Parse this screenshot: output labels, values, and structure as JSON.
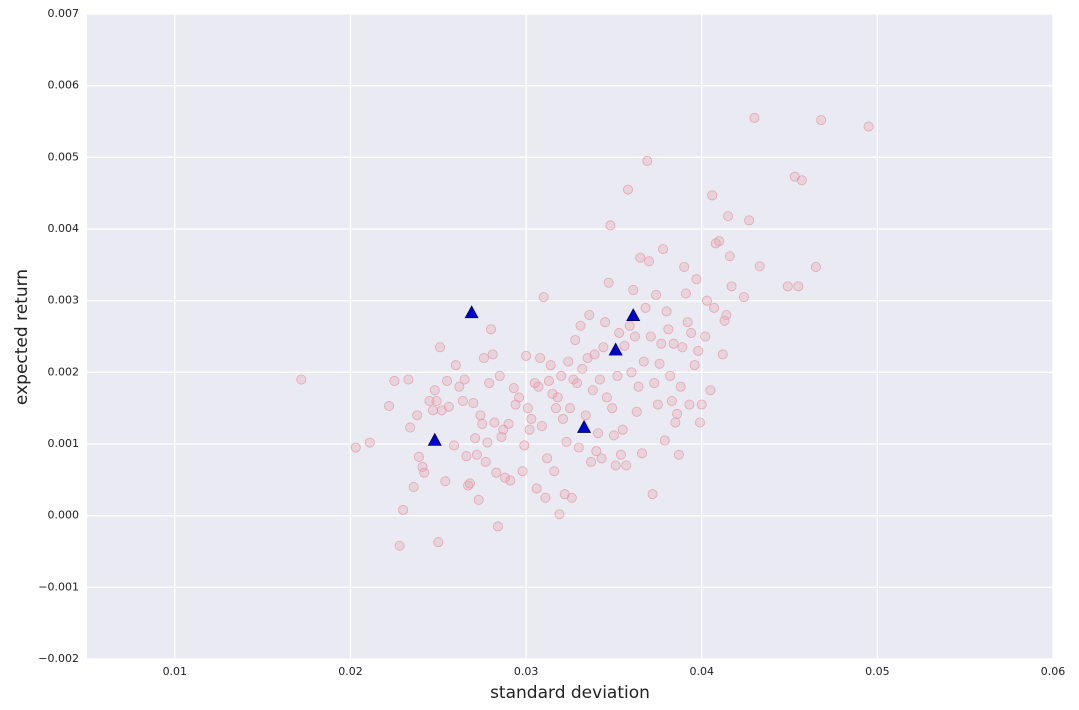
{
  "chart_data": {
    "type": "scatter",
    "xlabel": "standard deviation",
    "ylabel": "expected return",
    "xlim": [
      0.005,
      0.06
    ],
    "ylim": [
      -0.002,
      0.007
    ],
    "xticks": [
      0.01,
      0.02,
      0.03,
      0.04,
      0.05,
      0.06
    ],
    "yticks": [
      {
        "value": -0.002,
        "label": "−0.002"
      },
      {
        "value": -0.001,
        "label": "−0.001"
      },
      {
        "value": 0,
        "label": "0.000"
      },
      0.001,
      0.002,
      0.003,
      0.004,
      0.005,
      0.006,
      0.007
    ],
    "grid": true,
    "series": [
      {
        "color": "#e39aa6",
        "marker": "circle",
        "x": [
          0.0172,
          0.0203,
          0.0211,
          0.0222,
          0.0225,
          0.0228,
          0.023,
          0.0233,
          0.0234,
          0.0236,
          0.0238,
          0.0239,
          0.0241,
          0.0242,
          0.0245,
          0.0247,
          0.0248,
          0.0249,
          0.025,
          0.0251,
          0.0252,
          0.0254,
          0.0255,
          0.0256,
          0.0259,
          0.026,
          0.0262,
          0.0264,
          0.0265,
          0.0266,
          0.0267,
          0.0268,
          0.027,
          0.0271,
          0.0272,
          0.0273,
          0.0274,
          0.0275,
          0.0276,
          0.0277,
          0.0278,
          0.0279,
          0.028,
          0.0281,
          0.0282,
          0.0283,
          0.0284,
          0.0285,
          0.0286,
          0.0287,
          0.0288,
          0.029,
          0.0291,
          0.0293,
          0.0294,
          0.0296,
          0.0298,
          0.0299,
          0.03,
          0.0301,
          0.0302,
          0.0303,
          0.0305,
          0.0306,
          0.0307,
          0.0308,
          0.0309,
          0.031,
          0.0311,
          0.0312,
          0.0313,
          0.0314,
          0.0315,
          0.0316,
          0.0317,
          0.0318,
          0.0319,
          0.032,
          0.0321,
          0.0322,
          0.0323,
          0.0324,
          0.0325,
          0.0326,
          0.0327,
          0.0328,
          0.0329,
          0.033,
          0.0331,
          0.0332,
          0.0334,
          0.0335,
          0.0336,
          0.0337,
          0.0338,
          0.0339,
          0.034,
          0.0341,
          0.0342,
          0.0343,
          0.0344,
          0.0345,
          0.0346,
          0.0347,
          0.0348,
          0.0349,
          0.035,
          0.0351,
          0.0352,
          0.0353,
          0.0354,
          0.0355,
          0.0356,
          0.0357,
          0.0358,
          0.0359,
          0.036,
          0.0361,
          0.0362,
          0.0363,
          0.0364,
          0.0365,
          0.0366,
          0.0367,
          0.0368,
          0.0369,
          0.037,
          0.0371,
          0.0372,
          0.0373,
          0.0374,
          0.0375,
          0.0376,
          0.0377,
          0.0378,
          0.0379,
          0.038,
          0.0381,
          0.0382,
          0.0383,
          0.0384,
          0.0385,
          0.0386,
          0.0387,
          0.0388,
          0.0389,
          0.039,
          0.0391,
          0.0392,
          0.0393,
          0.0394,
          0.0396,
          0.0397,
          0.0398,
          0.0399,
          0.04,
          0.0402,
          0.0403,
          0.0405,
          0.0406,
          0.0407,
          0.0408,
          0.041,
          0.0412,
          0.0413,
          0.0414,
          0.0415,
          0.0416,
          0.0417,
          0.0424,
          0.0427,
          0.043,
          0.0433,
          0.0449,
          0.0453,
          0.0455,
          0.0457,
          0.0465,
          0.0468,
          0.0495
        ],
        "y": [
          0.0019,
          0.00095,
          0.00102,
          0.00153,
          0.00188,
          -0.00042,
          8e-05,
          0.0019,
          0.00123,
          0.0004,
          0.0014,
          0.00082,
          0.00068,
          0.0006,
          0.0016,
          0.00147,
          0.00175,
          0.0016,
          -0.00037,
          0.00235,
          0.00147,
          0.00048,
          0.00188,
          0.00152,
          0.00098,
          0.0021,
          0.0018,
          0.0016,
          0.0019,
          0.00083,
          0.00042,
          0.00045,
          0.00157,
          0.00108,
          0.00085,
          0.00022,
          0.0014,
          0.00128,
          0.0022,
          0.00075,
          0.00102,
          0.00185,
          0.0026,
          0.00225,
          0.0013,
          0.0006,
          -0.00015,
          0.00195,
          0.0011,
          0.0012,
          0.00053,
          0.00128,
          0.00049,
          0.00178,
          0.00155,
          0.00165,
          0.00062,
          0.00098,
          0.00223,
          0.0015,
          0.0012,
          0.00135,
          0.00185,
          0.00038,
          0.0018,
          0.0022,
          0.00125,
          0.00305,
          0.00025,
          0.0008,
          0.00188,
          0.0021,
          0.0017,
          0.00062,
          0.0015,
          0.00165,
          2e-05,
          0.00195,
          0.00135,
          0.0003,
          0.00103,
          0.00215,
          0.0015,
          0.00025,
          0.0019,
          0.00245,
          0.00185,
          0.00095,
          0.00265,
          0.00205,
          0.0014,
          0.0022,
          0.0028,
          0.00075,
          0.00175,
          0.00225,
          0.0009,
          0.00115,
          0.0019,
          0.0008,
          0.00235,
          0.0027,
          0.00165,
          0.00325,
          0.00405,
          0.0015,
          0.00112,
          0.0007,
          0.00195,
          0.00255,
          0.00085,
          0.0012,
          0.00237,
          0.0007,
          0.00455,
          0.00265,
          0.002,
          0.00315,
          0.0025,
          0.00145,
          0.0018,
          0.0036,
          0.00087,
          0.00215,
          0.0029,
          0.00495,
          0.00355,
          0.0025,
          0.0003,
          0.00185,
          0.00308,
          0.00155,
          0.00212,
          0.0024,
          0.00372,
          0.00105,
          0.00285,
          0.0026,
          0.00195,
          0.0016,
          0.0024,
          0.0013,
          0.00142,
          0.00085,
          0.0018,
          0.00235,
          0.00347,
          0.0031,
          0.0027,
          0.00155,
          0.00255,
          0.0021,
          0.0033,
          0.0023,
          0.0013,
          0.00155,
          0.0025,
          0.003,
          0.00175,
          0.00447,
          0.0029,
          0.0038,
          0.00383,
          0.00225,
          0.00272,
          0.0028,
          0.00418,
          0.00362,
          0.0032,
          0.00305,
          0.00412,
          0.00555,
          0.00348,
          0.0032,
          0.00473,
          0.0032,
          0.00468,
          0.00347,
          0.00552,
          0.00543
        ]
      },
      {
        "color": "#0000cc",
        "marker": "triangle",
        "x": [
          0.0269,
          0.0248,
          0.0333,
          0.0351,
          0.0361
        ],
        "y": [
          0.00283,
          0.00105,
          0.00123,
          0.00231,
          0.00279
        ]
      }
    ]
  }
}
